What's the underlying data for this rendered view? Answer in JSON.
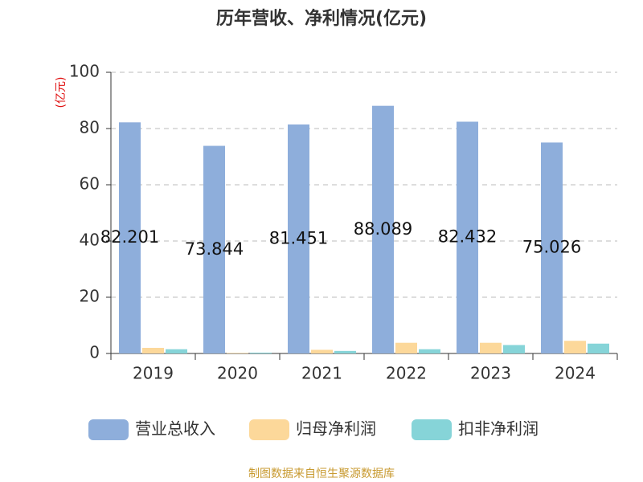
{
  "chart_data": {
    "type": "bar",
    "title": "历年营收、净利情况(亿元)",
    "y_label": "(亿元)",
    "categories": [
      "2019",
      "2020",
      "2021",
      "2022",
      "2023",
      "2024"
    ],
    "series": [
      {
        "name": "营业总收入",
        "color": "#8eaedb",
        "values": [
          82.201,
          73.844,
          81.451,
          88.089,
          82.432,
          75.026
        ]
      },
      {
        "name": "归母净利润",
        "color": "#fcd89a",
        "values": [
          2.0,
          0.2,
          1.3,
          3.8,
          3.8,
          4.5
        ]
      },
      {
        "name": "扣非净利润",
        "color": "#86d4d8",
        "values": [
          1.5,
          0.3,
          0.9,
          1.5,
          3.0,
          3.5
        ]
      }
    ],
    "ylim": [
      0,
      100
    ],
    "yticks": [
      0,
      20,
      40,
      60,
      80,
      100
    ],
    "grid": true,
    "source": "制图数据来自恒生聚源数据库"
  }
}
